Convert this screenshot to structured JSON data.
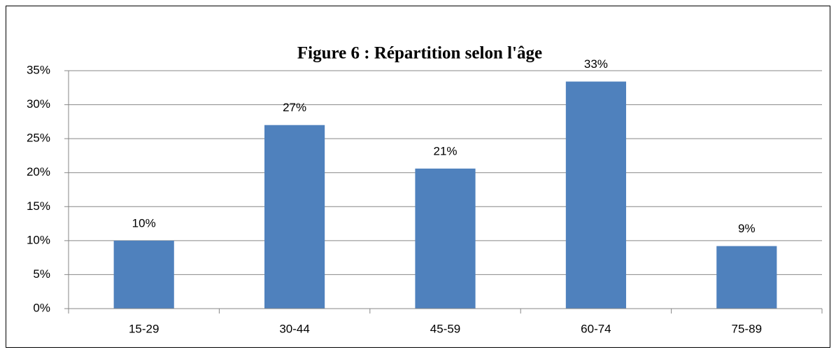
{
  "chart_data": {
    "type": "bar",
    "title": "Figure 6 : Répartition selon l'âge",
    "categories": [
      "15-29",
      "30-44",
      "45-59",
      "60-74",
      "75-89"
    ],
    "values": [
      10,
      27,
      20.6,
      33.4,
      9.2
    ],
    "value_labels": [
      "10%",
      "27%",
      "21%",
      "33%",
      "9%"
    ],
    "color": "#4f81bd",
    "ylim": [
      0,
      35
    ],
    "yticks": [
      {
        "value": 0,
        "label": "0%"
      },
      {
        "value": 5,
        "label": "5%"
      },
      {
        "value": 10,
        "label": "10%"
      },
      {
        "value": 15,
        "label": "15%"
      },
      {
        "value": 20,
        "label": "20%"
      },
      {
        "value": 25,
        "label": "25%"
      },
      {
        "value": 30,
        "label": "30%"
      },
      {
        "value": 35,
        "label": "35%"
      }
    ],
    "grid": true
  }
}
